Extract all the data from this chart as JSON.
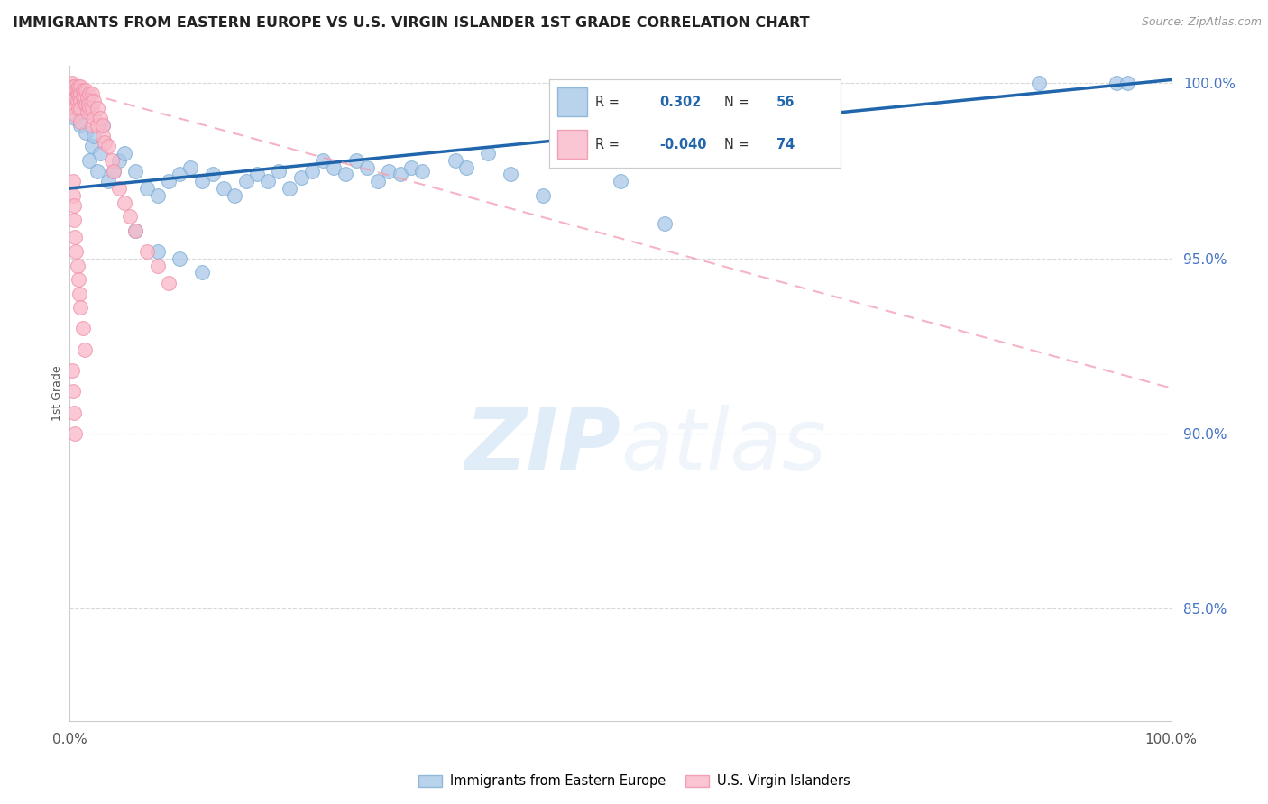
{
  "title": "IMMIGRANTS FROM EASTERN EUROPE VS U.S. VIRGIN ISLANDER 1ST GRADE CORRELATION CHART",
  "source": "Source: ZipAtlas.com",
  "ylabel": "1st Grade",
  "watermark_zip": "ZIP",
  "watermark_atlas": "atlas",
  "blue_R": 0.302,
  "blue_N": 56,
  "pink_R": -0.04,
  "pink_N": 74,
  "xlim": [
    0.0,
    1.0
  ],
  "ylim": [
    0.818,
    1.005
  ],
  "yticks": [
    0.85,
    0.9,
    0.95,
    1.0
  ],
  "ytick_labels": [
    "85.0%",
    "90.0%",
    "95.0%",
    "100.0%"
  ],
  "xticks": [
    0.0,
    0.2,
    0.4,
    0.6,
    0.8,
    1.0
  ],
  "xtick_labels": [
    "0.0%",
    "",
    "",
    "",
    "",
    "100.0%"
  ],
  "blue_color": "#a8c8e8",
  "blue_edge_color": "#7dadd4",
  "pink_color": "#f9b8c8",
  "pink_edge_color": "#f090a8",
  "blue_line_color": "#2166ac",
  "pink_line_color": "#f4a0b4",
  "grid_color": "#d8d8d8",
  "background_color": "#ffffff",
  "blue_line_x0": 0.0,
  "blue_line_y0": 0.97,
  "blue_line_x1": 1.0,
  "blue_line_y1": 1.001,
  "pink_line_x0": 0.0,
  "pink_line_y0": 0.9985,
  "pink_line_x1": 1.0,
  "pink_line_y1": 0.913,
  "blue_scatter_x": [
    0.005,
    0.008,
    0.01,
    0.012,
    0.015,
    0.018,
    0.02,
    0.022,
    0.025,
    0.028,
    0.03,
    0.035,
    0.04,
    0.045,
    0.05,
    0.06,
    0.07,
    0.08,
    0.09,
    0.1,
    0.11,
    0.12,
    0.13,
    0.14,
    0.15,
    0.16,
    0.17,
    0.18,
    0.19,
    0.2,
    0.21,
    0.22,
    0.23,
    0.24,
    0.25,
    0.26,
    0.27,
    0.28,
    0.29,
    0.3,
    0.31,
    0.32,
    0.35,
    0.36,
    0.38,
    0.4,
    0.43,
    0.5,
    0.54,
    0.88,
    0.95,
    0.96,
    0.06,
    0.08,
    0.1,
    0.12
  ],
  "blue_scatter_y": [
    0.99,
    0.995,
    0.988,
    0.992,
    0.986,
    0.978,
    0.982,
    0.985,
    0.975,
    0.98,
    0.988,
    0.972,
    0.975,
    0.978,
    0.98,
    0.975,
    0.97,
    0.968,
    0.972,
    0.974,
    0.976,
    0.972,
    0.974,
    0.97,
    0.968,
    0.972,
    0.974,
    0.972,
    0.975,
    0.97,
    0.973,
    0.975,
    0.978,
    0.976,
    0.974,
    0.978,
    0.976,
    0.972,
    0.975,
    0.974,
    0.976,
    0.975,
    0.978,
    0.976,
    0.98,
    0.974,
    0.968,
    0.972,
    0.96,
    1.0,
    1.0,
    1.0,
    0.958,
    0.952,
    0.95,
    0.946
  ],
  "pink_scatter_x": [
    0.002,
    0.002,
    0.003,
    0.003,
    0.004,
    0.004,
    0.005,
    0.005,
    0.005,
    0.005,
    0.005,
    0.006,
    0.006,
    0.007,
    0.007,
    0.008,
    0.008,
    0.008,
    0.009,
    0.009,
    0.01,
    0.01,
    0.01,
    0.01,
    0.01,
    0.012,
    0.012,
    0.013,
    0.013,
    0.014,
    0.015,
    0.015,
    0.016,
    0.016,
    0.017,
    0.018,
    0.018,
    0.02,
    0.02,
    0.02,
    0.022,
    0.022,
    0.025,
    0.025,
    0.028,
    0.03,
    0.03,
    0.032,
    0.035,
    0.038,
    0.04,
    0.045,
    0.05,
    0.055,
    0.06,
    0.07,
    0.08,
    0.09,
    0.003,
    0.003,
    0.004,
    0.004,
    0.005,
    0.006,
    0.007,
    0.008,
    0.009,
    0.01,
    0.012,
    0.014,
    0.002,
    0.003,
    0.004,
    0.005
  ],
  "pink_scatter_y": [
    0.998,
    1.0,
    0.997,
    0.999,
    0.998,
    0.996,
    0.999,
    0.997,
    0.995,
    0.993,
    0.991,
    0.998,
    0.996,
    0.997,
    0.995,
    0.999,
    0.997,
    0.993,
    0.998,
    0.996,
    0.999,
    0.997,
    0.995,
    0.993,
    0.989,
    0.998,
    0.996,
    0.997,
    0.995,
    0.996,
    0.998,
    0.994,
    0.996,
    0.992,
    0.994,
    0.997,
    0.993,
    0.997,
    0.993,
    0.988,
    0.995,
    0.99,
    0.993,
    0.988,
    0.99,
    0.985,
    0.988,
    0.983,
    0.982,
    0.978,
    0.975,
    0.97,
    0.966,
    0.962,
    0.958,
    0.952,
    0.948,
    0.943,
    0.972,
    0.968,
    0.965,
    0.961,
    0.956,
    0.952,
    0.948,
    0.944,
    0.94,
    0.936,
    0.93,
    0.924,
    0.918,
    0.912,
    0.906,
    0.9
  ]
}
